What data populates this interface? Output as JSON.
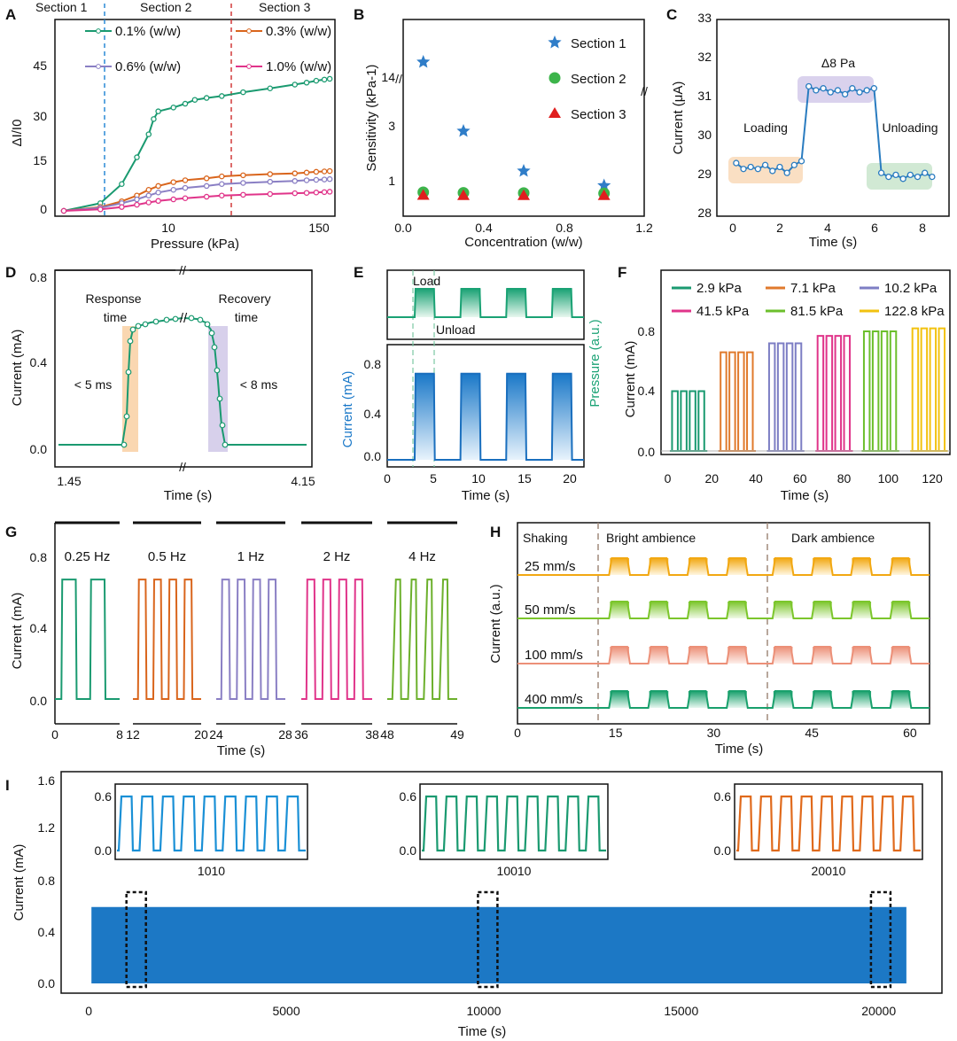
{
  "chart_data": [
    {
      "panel": "A",
      "type": "line",
      "xlabel": "Pressure (kPa)",
      "ylabel": "ΔI/I0",
      "x_ticks": [
        "10",
        "150"
      ],
      "y_ticks": [
        "0",
        "15",
        "30",
        "45"
      ],
      "ylim": [
        0,
        50
      ],
      "sections": [
        "Section 1",
        "Section 2",
        "Section 3"
      ],
      "series": [
        {
          "name": "0.1% (w/w)",
          "color": "#1a9a70",
          "x": [
            1,
            2,
            3,
            4,
            5,
            5.5,
            6,
            8,
            10,
            12,
            15,
            20,
            30,
            50,
            80,
            100,
            120,
            140,
            155
          ],
          "y": [
            0,
            2,
            7,
            14,
            20,
            24,
            26,
            27,
            28,
            29,
            29.5,
            30,
            31,
            32,
            33,
            33.5,
            34,
            34.3,
            34.5
          ]
        },
        {
          "name": "0.3% (w/w)",
          "color": "#d9651c",
          "x": [
            1,
            2,
            3,
            4,
            5,
            6,
            8,
            10,
            15,
            20,
            30,
            50,
            80,
            100,
            120,
            140,
            155
          ],
          "y": [
            0,
            1,
            2.5,
            4,
            5.5,
            6.5,
            7.5,
            8,
            8.5,
            9,
            9.3,
            9.6,
            9.8,
            10,
            10.2,
            10.3,
            10.4
          ]
        },
        {
          "name": "0.6% (w/w)",
          "color": "#8a7fc4",
          "x": [
            1,
            2,
            3,
            4,
            5,
            6,
            8,
            10,
            15,
            20,
            30,
            50,
            80,
            100,
            120,
            140,
            155
          ],
          "y": [
            0,
            0.8,
            2,
            3,
            4,
            4.8,
            5.5,
            6,
            6.5,
            7,
            7.3,
            7.6,
            7.8,
            8,
            8.1,
            8.2,
            8.3
          ]
        },
        {
          "name": "1.0% (w/w)",
          "color": "#e0348a",
          "x": [
            1,
            2,
            3,
            4,
            5,
            6,
            8,
            10,
            15,
            20,
            30,
            50,
            80,
            100,
            120,
            140,
            155
          ],
          "y": [
            0,
            0.4,
            1,
            1.6,
            2.2,
            2.6,
            3,
            3.3,
            3.7,
            4,
            4.2,
            4.4,
            4.6,
            4.7,
            4.8,
            4.9,
            5
          ]
        }
      ]
    },
    {
      "panel": "B",
      "type": "scatter",
      "xlabel": "Concentration (w/w)",
      "ylabel": "Sensitivity (kPa-1)",
      "x_ticks": [
        "0.0",
        "0.4",
        "0.8",
        "1.2"
      ],
      "y_ticks": [
        "1",
        "3",
        "14"
      ],
      "xlim": [
        0,
        1.2
      ],
      "series": [
        {
          "name": "Section 1",
          "marker": "star",
          "color": "#2f7dc8",
          "x": [
            0.1,
            0.3,
            0.6,
            1.0
          ],
          "y": [
            16,
            2.8,
            1.3,
            0.75
          ]
        },
        {
          "name": "Section 2",
          "marker": "circle",
          "color": "#3cb44a",
          "x": [
            0.1,
            0.3,
            0.6,
            1.0
          ],
          "y": [
            0.5,
            0.48,
            0.47,
            0.46
          ]
        },
        {
          "name": "Section 3",
          "marker": "triangle",
          "color": "#e01e1e",
          "x": [
            0.1,
            0.3,
            0.6,
            1.0
          ],
          "y": [
            0.45,
            0.44,
            0.44,
            0.44
          ]
        }
      ]
    },
    {
      "panel": "C",
      "type": "line",
      "xlabel": "Time (s)",
      "ylabel": "Current (μA)",
      "x_ticks": [
        "0",
        "2",
        "4",
        "6",
        "8"
      ],
      "y_ticks": [
        "28",
        "29",
        "30",
        "31",
        "32",
        "33"
      ],
      "xlim": [
        -0.8,
        8.8
      ],
      "ylim": [
        28,
        33
      ],
      "annotations": [
        "Δ8 Pa",
        "Loading",
        "Unloading"
      ],
      "series": [
        {
          "name": "",
          "color": "#2a7cc0",
          "x": [
            0,
            0.3,
            0.6,
            0.9,
            1.2,
            1.5,
            1.8,
            2.1,
            2.4,
            2.7,
            3.0,
            3.3,
            3.6,
            3.9,
            4.2,
            4.5,
            4.8,
            5.1,
            5.4,
            5.7,
            6.0,
            6.3,
            6.6,
            6.9,
            7.2,
            7.5,
            7.8,
            8.1
          ],
          "y": [
            29.35,
            29.2,
            29.25,
            29.2,
            29.3,
            29.15,
            29.25,
            29.1,
            29.3,
            29.4,
            31.3,
            31.2,
            31.25,
            31.15,
            31.2,
            31.1,
            31.25,
            31.15,
            31.2,
            31.25,
            29.1,
            29.0,
            29.05,
            28.95,
            29.05,
            29.0,
            29.1,
            29.0
          ]
        }
      ]
    },
    {
      "panel": "D",
      "type": "line",
      "xlabel": "Time (s)",
      "ylabel": "Current (mA)",
      "x_ticks": [
        "1.45",
        "4.15"
      ],
      "y_ticks": [
        "0.0",
        "0.4",
        "0.8"
      ],
      "ylim": [
        -0.05,
        0.82
      ],
      "annotations": [
        "Response time",
        "Recovery time",
        "< 5 ms",
        "< 8 ms"
      ]
    },
    {
      "panel": "E",
      "type": "line",
      "xlabel": "Time (s)",
      "ylabel": "Current (mA)",
      "ylabel_right": "Pressure (a.u.)",
      "x_ticks": [
        "0",
        "5",
        "10",
        "15",
        "20"
      ],
      "y_ticks": [
        "0.0",
        "0.4",
        "0.8"
      ],
      "xlim": [
        0,
        21.5
      ],
      "ylim": [
        -0.1,
        0.9
      ],
      "annotations": [
        "Load",
        "Unload"
      ],
      "pulses": [
        [
          3,
          5.2
        ],
        [
          8,
          10.2
        ],
        [
          13,
          15.2
        ],
        [
          18,
          20.2
        ]
      ],
      "level": 0.72
    },
    {
      "panel": "F",
      "type": "line",
      "xlabel": "Time (s)",
      "ylabel": "Current (mA)",
      "x_ticks": [
        "0",
        "20",
        "40",
        "60",
        "80",
        "100",
        "120"
      ],
      "y_ticks": [
        "0.0",
        "0.4",
        "0.8"
      ],
      "xlim": [
        -3,
        128
      ],
      "ylim": [
        -0.05,
        1.1
      ],
      "series": [
        {
          "name": "2.9 kPa",
          "color": "#1a9a70",
          "level": 0.4,
          "start": 2
        },
        {
          "name": "7.1 kPa",
          "color": "#e07a2c",
          "level": 0.66,
          "start": 24
        },
        {
          "name": "10.2 kPa",
          "color": "#7d7ec4",
          "level": 0.72,
          "start": 46
        },
        {
          "name": "41.5 kPa",
          "color": "#e0348a",
          "level": 0.77,
          "start": 68
        },
        {
          "name": "81.5 kPa",
          "color": "#6cbf2c",
          "level": 0.8,
          "start": 89
        },
        {
          "name": "122.8 kPa",
          "color": "#f2c20f",
          "level": 0.82,
          "start": 111
        }
      ]
    },
    {
      "panel": "G",
      "type": "line",
      "xlabel": "Time (s)",
      "ylabel": "Current (mA)",
      "y_ticks": [
        "0.0",
        "0.4",
        "0.8"
      ],
      "ylim": [
        -0.1,
        0.9
      ],
      "series": [
        {
          "name": "0.25 Hz",
          "color": "#1a9a70",
          "cycles": 2,
          "ticks": [
            "0",
            "8"
          ]
        },
        {
          "name": "0.5 Hz",
          "color": "#d9651c",
          "cycles": 4,
          "ticks": [
            "12",
            "20"
          ]
        },
        {
          "name": "1 Hz",
          "color": "#8a7fc4",
          "cycles": 4,
          "ticks": [
            "24",
            "28"
          ]
        },
        {
          "name": "2 Hz",
          "color": "#e0348a",
          "cycles": 4,
          "ticks": [
            "36",
            "38"
          ]
        },
        {
          "name": "4 Hz",
          "color": "#6cb02c",
          "cycles": 4,
          "ticks": [
            "48",
            "49"
          ]
        }
      ],
      "level": 0.67
    },
    {
      "panel": "H",
      "type": "line",
      "xlabel": "Time (s)",
      "ylabel": "Current (a.u.)",
      "x_ticks": [
        "0",
        "15",
        "30",
        "45",
        "60"
      ],
      "xlim": [
        0,
        63
      ],
      "annotations": [
        "Shaking",
        "Bright ambience",
        "Dark ambience"
      ],
      "series": [
        {
          "name": "25 mm/s",
          "color": "#f2a812"
        },
        {
          "name": "50 mm/s",
          "color": "#7cc62c"
        },
        {
          "name": "100 mm/s",
          "color": "#ec9078"
        },
        {
          "name": "400 mm/s",
          "color": "#19a06c"
        }
      ]
    },
    {
      "panel": "I",
      "type": "area",
      "xlabel": "Time (s)",
      "ylabel": "Current (mA)",
      "x_ticks": [
        "0",
        "5000",
        "10000",
        "15000",
        "20000"
      ],
      "y_ticks": [
        "0.0",
        "0.4",
        "0.8",
        "1.2",
        "1.6"
      ],
      "xlim": [
        -700,
        21600
      ],
      "ylim": [
        -0.05,
        1.65
      ],
      "end_time": 20700,
      "level": 0.6,
      "color": "#1c78c5",
      "insets": [
        {
          "label": "1010",
          "color": "#1a90d6",
          "ticks": [
            "0.6",
            "0.0"
          ],
          "center": 1200
        },
        {
          "label": "10010",
          "color": "#1a9a70",
          "ticks": [
            "0.6",
            "0.0"
          ],
          "center": 10100
        },
        {
          "label": "20010",
          "color": "#e06a1c",
          "ticks": [
            "0.6",
            "0.0"
          ],
          "center": 20050
        }
      ]
    }
  ]
}
